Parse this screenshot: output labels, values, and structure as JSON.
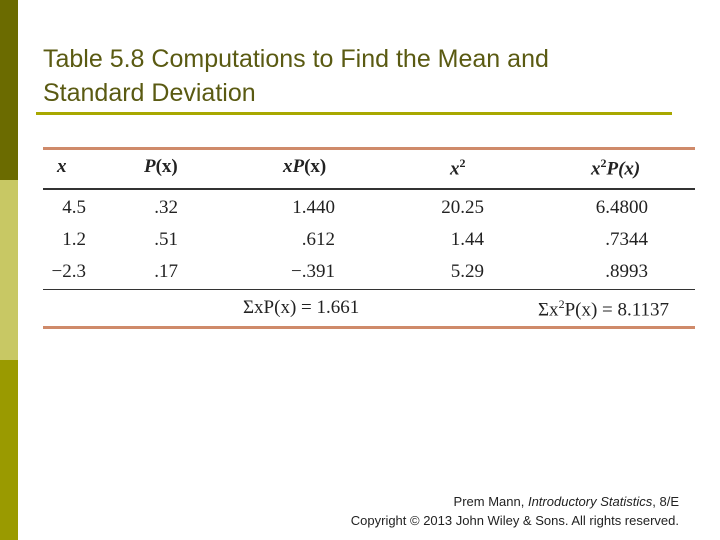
{
  "slide": {
    "title_line1": "Table 5.8 Computations to Find the Mean and",
    "title_line2": "Standard Deviation",
    "accent_color": "#a8a800",
    "sidebar_colors": [
      "#6b6b00",
      "#c8c864",
      "#9a9a00"
    ]
  },
  "table": {
    "headers": {
      "x": "x",
      "px_base": "P",
      "px_paren": "(x)",
      "xpx_base": "xP",
      "xpx_paren": "(x)",
      "x2_base": "x",
      "x2_sup": "2",
      "x2px_base": "x",
      "x2px_sup": "2",
      "x2px_tail": "P(x)"
    },
    "rows": [
      {
        "x": "4.5",
        "px": ".32",
        "xpx": "1.440",
        "x2": "20.25",
        "x2px": "6.4800"
      },
      {
        "x": "1.2",
        "px": ".51",
        "xpx": ".612",
        "x2": "1.44",
        "x2px": ".7344"
      },
      {
        "x": "−2.3",
        "px": ".17",
        "xpx": "−.391",
        "x2": "5.29",
        "x2px": ".8993"
      }
    ],
    "sums": {
      "sum1_label": "ΣxP(x) = ",
      "sum1_value": "1.661",
      "sum2_prefix": "Σx",
      "sum2_sup": "2",
      "sum2_tail": "P(x) = ",
      "sum2_value": "8.1137"
    }
  },
  "footer": {
    "author": "Prem Mann, ",
    "book": "Introductory Statistics",
    "edition": ", 8/E",
    "copyright": "Copyright © 2013 John Wiley & Sons. All rights reserved."
  }
}
